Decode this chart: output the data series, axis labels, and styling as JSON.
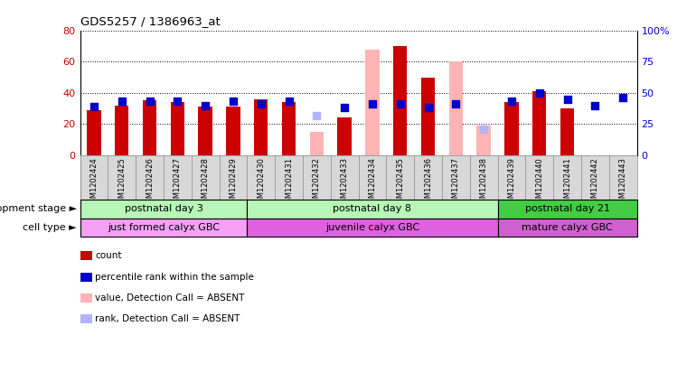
{
  "title": "GDS5257 / 1386963_at",
  "samples": [
    "GSM1202424",
    "GSM1202425",
    "GSM1202426",
    "GSM1202427",
    "GSM1202428",
    "GSM1202429",
    "GSM1202430",
    "GSM1202431",
    "GSM1202432",
    "GSM1202433",
    "GSM1202434",
    "GSM1202435",
    "GSM1202436",
    "GSM1202437",
    "GSM1202438",
    "GSM1202439",
    "GSM1202440",
    "GSM1202441",
    "GSM1202442",
    "GSM1202443"
  ],
  "count_values": [
    29,
    32,
    35,
    34,
    31,
    31,
    36,
    34,
    null,
    24,
    null,
    70,
    50,
    null,
    null,
    34,
    41,
    30,
    null,
    null
  ],
  "absent_values": [
    null,
    null,
    null,
    null,
    null,
    null,
    null,
    null,
    15,
    null,
    68,
    null,
    null,
    60,
    19,
    null,
    null,
    null,
    null,
    null
  ],
  "percentile_values": [
    39,
    43,
    43,
    43,
    40,
    43,
    41,
    43,
    null,
    38,
    41,
    41,
    38,
    41,
    null,
    43,
    50,
    45,
    40,
    46
  ],
  "absent_rank_values": [
    null,
    null,
    null,
    null,
    null,
    null,
    null,
    null,
    32,
    null,
    null,
    null,
    null,
    41,
    21,
    null,
    null,
    null,
    null,
    null
  ],
  "count_color": "#cc0000",
  "absent_color": "#ffb3b3",
  "percentile_color": "#0000cc",
  "absent_rank_color": "#b3b3ff",
  "ylim_left": [
    0,
    80
  ],
  "ylim_right": [
    0,
    100
  ],
  "yticks_left": [
    0,
    20,
    40,
    60,
    80
  ],
  "yticks_right": [
    0,
    25,
    50,
    75,
    100
  ],
  "stage_boundaries": [
    {
      "start": 0,
      "end": 5,
      "label": "postnatal day 3",
      "color": "#b8f5b8"
    },
    {
      "start": 6,
      "end": 14,
      "label": "postnatal day 8",
      "color": "#b8f5b8"
    },
    {
      "start": 15,
      "end": 19,
      "label": "postnatal day 21",
      "color": "#44cc44"
    }
  ],
  "cell_boundaries": [
    {
      "start": 0,
      "end": 5,
      "label": "just formed calyx GBC",
      "color": "#f5a0f5"
    },
    {
      "start": 6,
      "end": 14,
      "label": "juvenile calyx GBC",
      "color": "#e060e0"
    },
    {
      "start": 15,
      "end": 19,
      "label": "mature calyx GBC",
      "color": "#d060d0"
    }
  ],
  "dev_stage_label": "development stage",
  "cell_type_label": "cell type",
  "legend_items": [
    {
      "label": "count",
      "color": "#cc0000"
    },
    {
      "label": "percentile rank within the sample",
      "color": "#0000cc"
    },
    {
      "label": "value, Detection Call = ABSENT",
      "color": "#ffb3b3"
    },
    {
      "label": "rank, Detection Call = ABSENT",
      "color": "#b3b3ff"
    }
  ],
  "background_color": "#ffffff",
  "xtick_bg": "#d8d8d8",
  "bar_width": 0.5,
  "dot_size": 35
}
